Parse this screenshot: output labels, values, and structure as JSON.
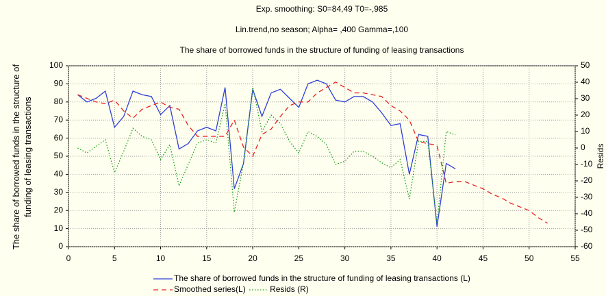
{
  "chart_data": {
    "type": "line",
    "title": "Exp. smoothing:  S0=84,49 T0=-,985",
    "subtitle": "Lin.trend,no season; Alpha= ,400 Gamma=,100",
    "caption": "The share of borrowed funds in the structure of funding of leasing transactions",
    "y_label": "The share of borrowed funds in the structure of funding of leasing transactions",
    "y2_label": "Resids",
    "xlim": [
      0,
      55
    ],
    "xticks": [
      0,
      5,
      10,
      15,
      20,
      25,
      30,
      35,
      40,
      45,
      50,
      55
    ],
    "ylim": [
      0,
      100
    ],
    "yticks": [
      0,
      10,
      20,
      30,
      40,
      50,
      60,
      70,
      80,
      90,
      100
    ],
    "y2lim": [
      -60,
      50
    ],
    "y2ticks": [
      -60,
      -50,
      -40,
      -30,
      -20,
      -10,
      0,
      10,
      20,
      30,
      40,
      50
    ],
    "grid": true,
    "series": [
      {
        "name": "The share of borrowed funds in the structure of funding of leasing transactions (L)",
        "color": "#2f3fd8",
        "style": "solid",
        "x": [
          1,
          2,
          3,
          4,
          5,
          6,
          7,
          8,
          9,
          10,
          11,
          12,
          13,
          14,
          15,
          16,
          17,
          18,
          19,
          20,
          21,
          22,
          23,
          24,
          25,
          26,
          27,
          28,
          29,
          30,
          31,
          32,
          33,
          34,
          35,
          36,
          37,
          38,
          39,
          40,
          41,
          42
        ],
        "values": [
          84,
          80,
          82,
          86,
          66,
          72,
          86,
          84,
          83,
          73,
          78,
          54,
          57,
          64,
          66,
          64,
          88,
          32,
          46,
          87,
          72,
          85,
          87,
          82,
          77,
          90,
          92,
          90,
          81,
          80,
          83,
          83,
          80,
          74,
          67,
          68,
          40,
          62,
          61,
          11,
          46,
          43
        ]
      },
      {
        "name": "Smoothed series(L)",
        "color": "#e82020",
        "style": "dashed",
        "x": [
          1,
          2,
          3,
          4,
          5,
          6,
          7,
          8,
          9,
          10,
          11,
          12,
          13,
          14,
          15,
          16,
          17,
          18,
          19,
          20,
          21,
          22,
          23,
          24,
          25,
          26,
          27,
          28,
          29,
          30,
          31,
          32,
          33,
          34,
          35,
          36,
          37,
          38,
          39,
          40,
          41,
          42,
          43,
          44,
          45,
          46,
          47,
          48,
          49,
          50,
          51,
          52
        ],
        "values": [
          84,
          82,
          80,
          79,
          81,
          75,
          71,
          76,
          78,
          80,
          77,
          76,
          67,
          61,
          61,
          61,
          61,
          70,
          55,
          50,
          62,
          65,
          72,
          78,
          80,
          80,
          85,
          88,
          91,
          88,
          85,
          85,
          84,
          83,
          78,
          75,
          70,
          58,
          57,
          56,
          35,
          36,
          36,
          34,
          32,
          29,
          27,
          24,
          22,
          20,
          16,
          13
        ]
      },
      {
        "name": "Resids (R)",
        "color": "#12a012",
        "style": "dotted",
        "axis": "y2",
        "x": [
          1,
          2,
          3,
          4,
          5,
          6,
          7,
          8,
          9,
          10,
          11,
          12,
          13,
          14,
          15,
          16,
          17,
          18,
          19,
          20,
          21,
          22,
          23,
          24,
          25,
          26,
          27,
          28,
          29,
          30,
          31,
          32,
          33,
          34,
          35,
          36,
          37,
          38,
          39,
          40,
          41,
          42
        ],
        "values": [
          0,
          -3,
          1,
          5,
          -15,
          -2,
          12,
          7,
          5,
          -7,
          2,
          -23,
          -10,
          3,
          5,
          3,
          27,
          -39,
          -9,
          37,
          10,
          20,
          15,
          4,
          -3,
          10,
          7,
          2,
          -10,
          -8,
          -2,
          -2,
          -5,
          -9,
          -12,
          -7,
          -31,
          4,
          4,
          -46,
          10,
          8
        ]
      }
    ]
  }
}
